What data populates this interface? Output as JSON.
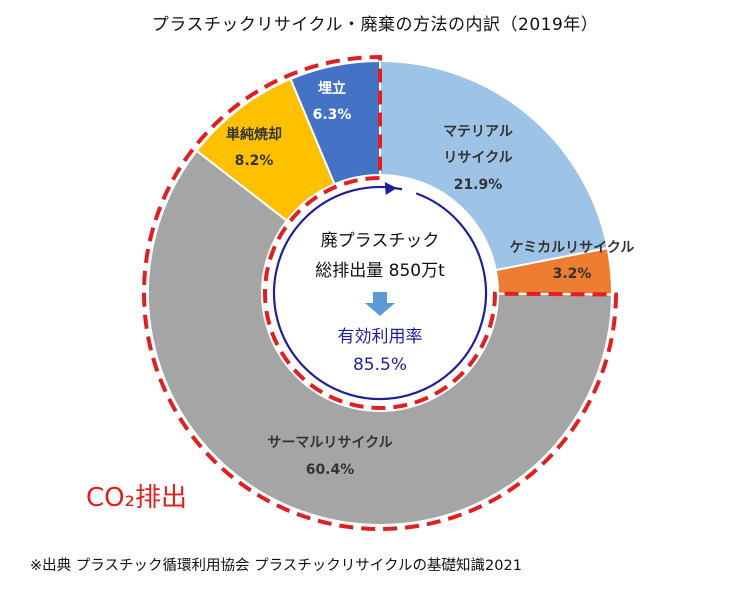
{
  "title": "プラスチックリサイクル・廃棄の方法の内訳（2019年）",
  "source_note": "※出典 プラスチック循環利用協会 プラスチックリサイクルの基礎知識2021",
  "center": {
    "line1": "廃プラスチック",
    "line2": "総排出量 850万t",
    "rate_label": "有効利用率",
    "rate_value": "85.5%"
  },
  "co2_label": "CO₂排出",
  "colors": {
    "materialRecycle": "#9dc3e6",
    "chemicalRecycle": "#ed7d31",
    "thermalRecycle": "#a5a5a5",
    "simpleIncineration": "#ffc000",
    "landfill": "#4472c4",
    "co2Outline": "#e02020",
    "centerRing": "#1f1f9c",
    "arrow": "#5b9bd5"
  },
  "chart_data": {
    "type": "pie",
    "donut": true,
    "title": "プラスチックリサイクル・廃棄の方法の内訳（2019年）",
    "slices": [
      {
        "key": "materialRecycle",
        "label": "マテリアルリサイクル",
        "value": 21.9,
        "value_label": "21.9%",
        "color": "#9dc3e6"
      },
      {
        "key": "chemicalRecycle",
        "label": "ケミカルリサイクル",
        "value": 3.2,
        "value_label": "3.2%",
        "color": "#ed7d31"
      },
      {
        "key": "thermalRecycle",
        "label": "サーマルリサイクル",
        "value": 60.4,
        "value_label": "60.4%",
        "color": "#a5a5a5"
      },
      {
        "key": "simpleIncineration",
        "label": "単純焼却",
        "value": 8.2,
        "value_label": "8.2%",
        "color": "#ffc000"
      },
      {
        "key": "landfill",
        "label": "埋立",
        "value": 6.3,
        "value_label": "6.3%",
        "color": "#4472c4"
      }
    ],
    "start_angle": "12 o'clock",
    "direction": "clockwise",
    "highlight": {
      "slices": [
        "thermalRecycle",
        "simpleIncineration",
        "landfill"
      ],
      "style": "red dashed outline",
      "label": "CO₂排出"
    }
  }
}
